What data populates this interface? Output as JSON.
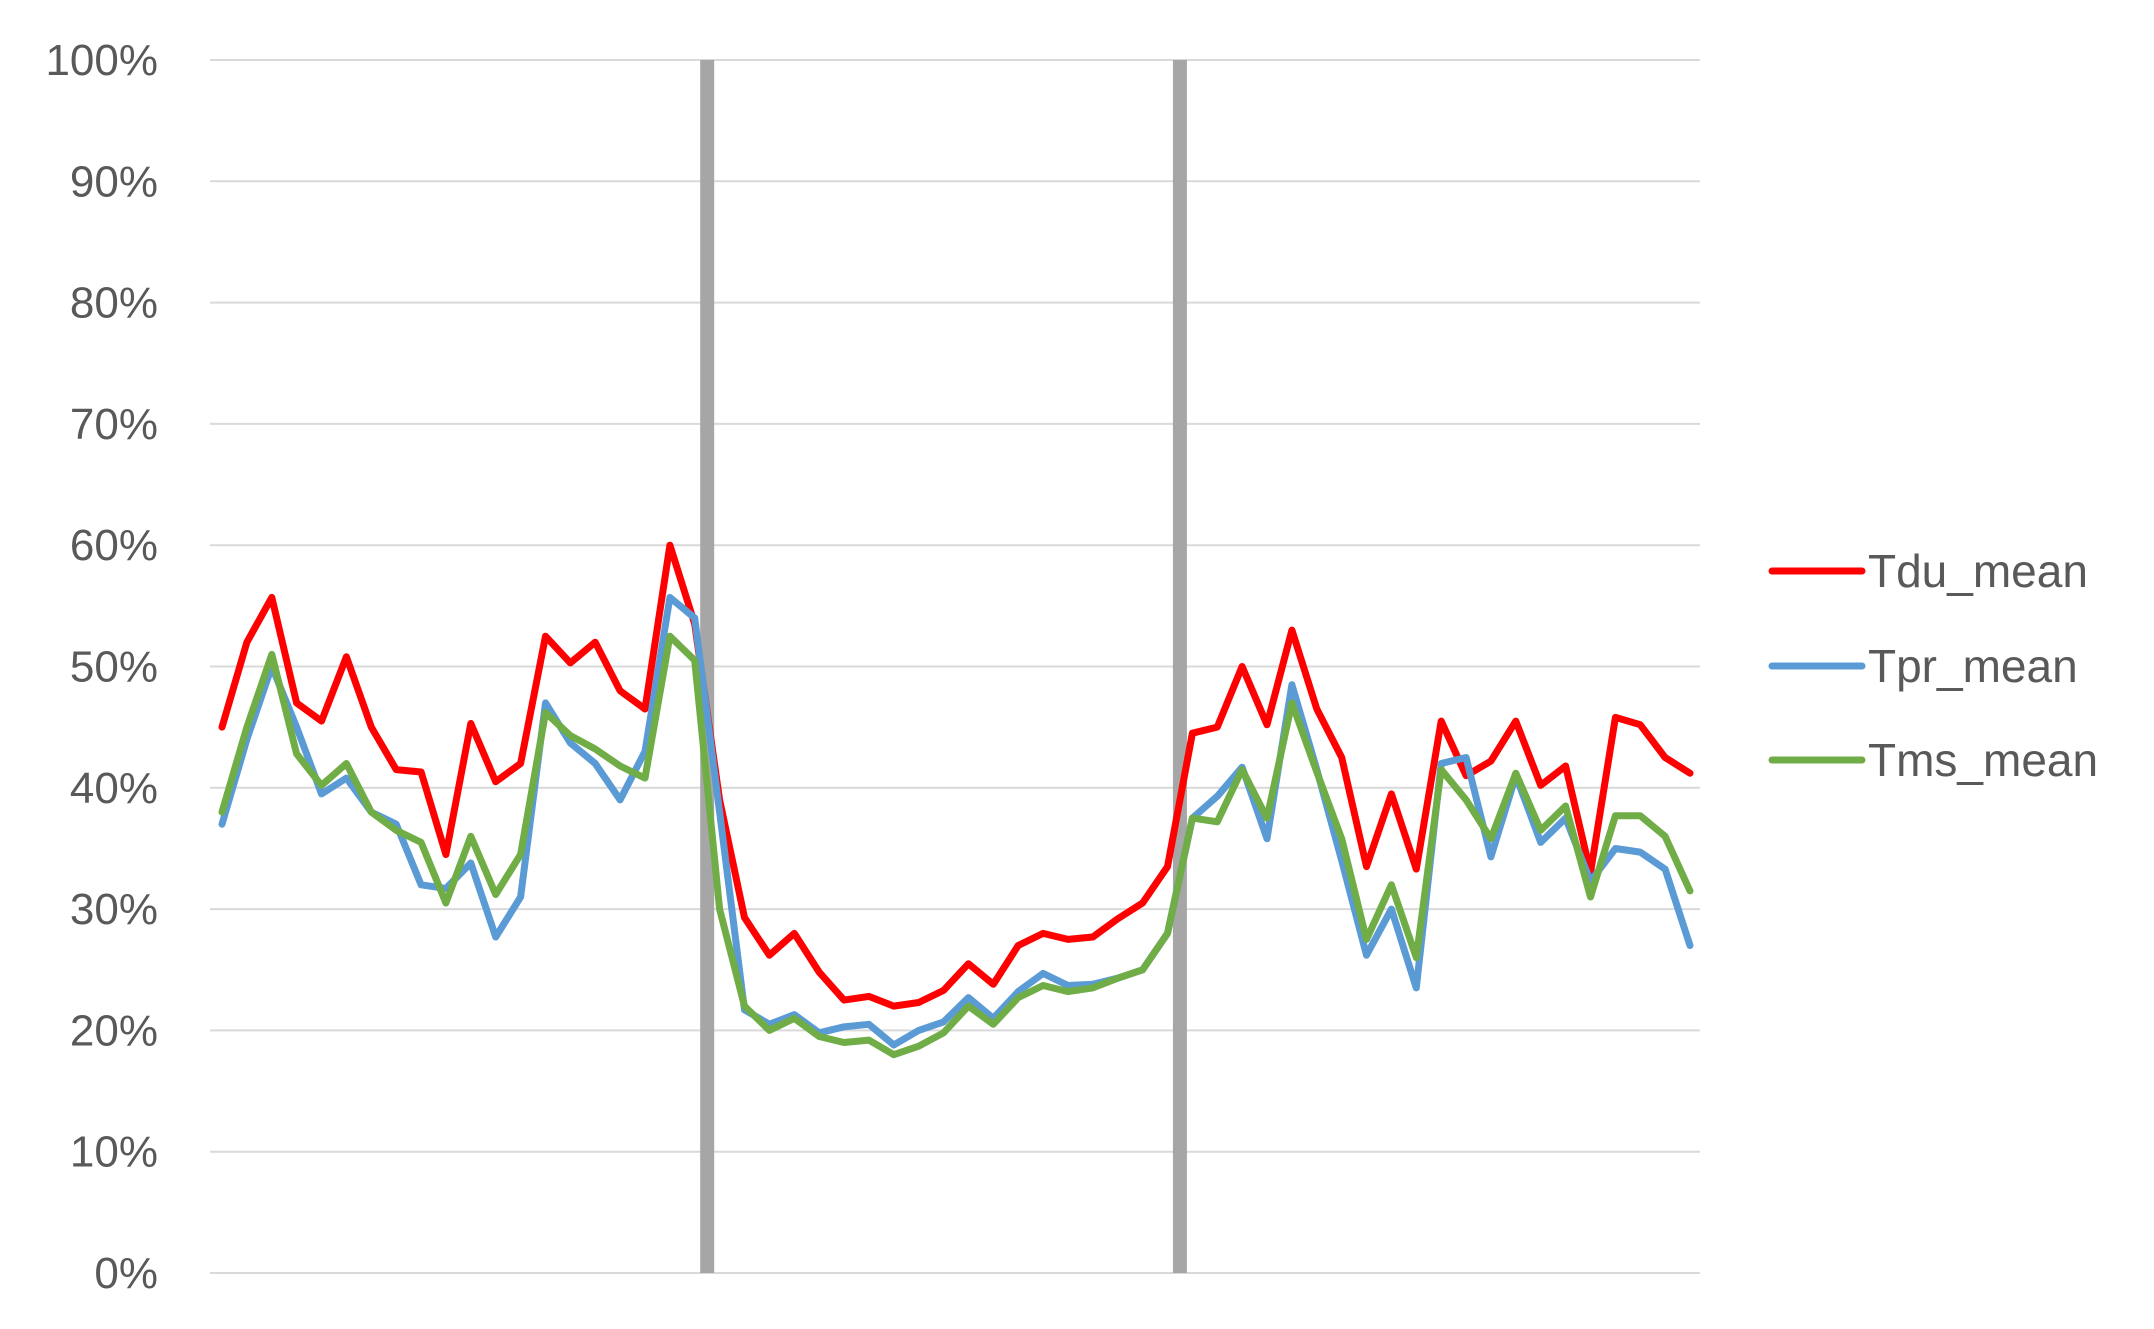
{
  "chart_data": {
    "type": "line",
    "title": "",
    "xlabel": "",
    "ylabel": "",
    "ylim": [
      0,
      1
    ],
    "y_ticks": [
      "0%",
      "10%",
      "20%",
      "30%",
      "40%",
      "50%",
      "60%",
      "70%",
      "80%",
      "90%",
      "100%"
    ],
    "grid": "horizontal",
    "legend_position": "right",
    "x": [
      0,
      1,
      2,
      3,
      4,
      5,
      6,
      7,
      8,
      9,
      10,
      11,
      12,
      13,
      14,
      15,
      16,
      17,
      18,
      19,
      20,
      21,
      22,
      23,
      24,
      25,
      26,
      27,
      28,
      29,
      30,
      31,
      32,
      33,
      34,
      35,
      36,
      37,
      38,
      39,
      40,
      41,
      42,
      43,
      44,
      45,
      46,
      47,
      48,
      49,
      50,
      51,
      52,
      53,
      54,
      55,
      56,
      57,
      58,
      59
    ],
    "vertical_markers": [
      19.5,
      38.5
    ],
    "series": [
      {
        "name": "Tdu_mean",
        "color": "#ff0000",
        "values": [
          0.45,
          0.52,
          0.557,
          0.47,
          0.455,
          0.508,
          0.45,
          0.415,
          0.413,
          0.345,
          0.453,
          0.405,
          0.42,
          0.525,
          0.503,
          0.52,
          0.48,
          0.465,
          0.6,
          0.535,
          0.39,
          0.293,
          0.262,
          0.28,
          0.248,
          0.225,
          0.228,
          0.22,
          0.223,
          0.233,
          0.255,
          0.238,
          0.27,
          0.28,
          0.275,
          0.277,
          0.292,
          0.305,
          0.335,
          0.445,
          0.45,
          0.5,
          0.452,
          0.53,
          0.465,
          0.425,
          0.335,
          0.395,
          0.333,
          0.455,
          0.41,
          0.422,
          0.455,
          0.402,
          0.418,
          0.33,
          0.458,
          0.452,
          0.425,
          0.412
        ]
      },
      {
        "name": "Tpr_mean",
        "color": "#5b9bd5",
        "values": [
          0.37,
          0.44,
          0.5,
          0.45,
          0.395,
          0.408,
          0.38,
          0.37,
          0.32,
          0.317,
          0.338,
          0.277,
          0.31,
          0.47,
          0.437,
          0.42,
          0.39,
          0.43,
          0.557,
          0.54,
          0.38,
          0.217,
          0.205,
          0.213,
          0.198,
          0.203,
          0.205,
          0.188,
          0.2,
          0.207,
          0.227,
          0.21,
          0.232,
          0.247,
          0.237,
          0.238,
          0.243,
          0.25,
          0.28,
          0.375,
          0.393,
          0.417,
          0.358,
          0.485,
          0.415,
          0.34,
          0.262,
          0.3,
          0.235,
          0.42,
          0.425,
          0.343,
          0.41,
          0.355,
          0.375,
          0.323,
          0.35,
          0.347,
          0.333,
          0.27
        ]
      },
      {
        "name": "Tms_mean",
        "color": "#70ad47",
        "values": [
          0.38,
          0.45,
          0.51,
          0.428,
          0.402,
          0.42,
          0.38,
          0.365,
          0.355,
          0.305,
          0.36,
          0.312,
          0.345,
          0.462,
          0.443,
          0.432,
          0.418,
          0.408,
          0.525,
          0.505,
          0.3,
          0.22,
          0.2,
          0.21,
          0.195,
          0.19,
          0.192,
          0.18,
          0.187,
          0.198,
          0.22,
          0.205,
          0.227,
          0.237,
          0.232,
          0.235,
          0.243,
          0.25,
          0.28,
          0.375,
          0.372,
          0.415,
          0.375,
          0.47,
          0.413,
          0.358,
          0.275,
          0.32,
          0.26,
          0.415,
          0.39,
          0.358,
          0.412,
          0.365,
          0.385,
          0.31,
          0.377,
          0.377,
          0.36,
          0.315
        ]
      }
    ]
  }
}
